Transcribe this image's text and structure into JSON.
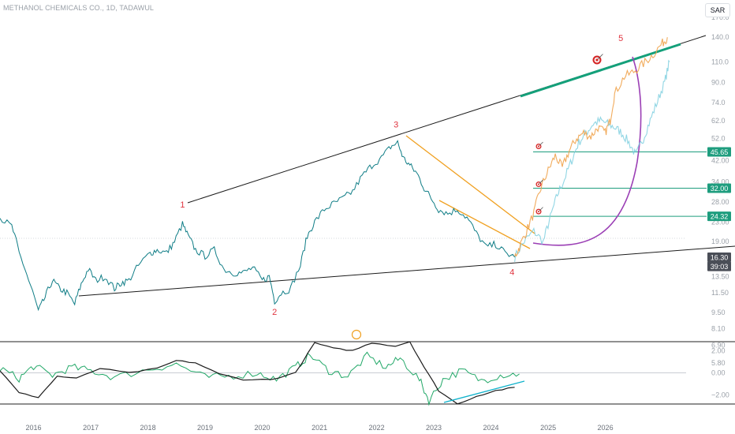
{
  "header": {
    "title": "METHANOL CHEMICALS CO., 1D, TADAWUL",
    "currency": "SAR"
  },
  "chart_data": [
    {
      "type": "line",
      "title": "METHANOL CHEMICALS CO., 1D, TADAWUL",
      "y_scale": "log",
      "ylim": [
        5.8,
        170
      ],
      "y_ticks": [
        "170.0",
        "140.0",
        "110.0",
        "90.0",
        "74.0",
        "62.0",
        "52.0",
        "42.00",
        "34.00",
        "28.00",
        "23.00",
        "19.00",
        "13.50",
        "11.50",
        "9.50",
        "8.10",
        "6.90",
        "5.80"
      ],
      "x_range": [
        "2015-06-01",
        "2027-06-01"
      ],
      "x_ticks": [
        "2016",
        "2017",
        "2018",
        "2019",
        "2020",
        "2021",
        "2022",
        "2023",
        "2024",
        "2025",
        "2026"
      ],
      "series": [
        {
          "values": [
            [
              "2015-06-01",
              24
            ],
            [
              "2015-08-15",
              22
            ],
            [
              "2015-10-01",
              17
            ],
            [
              "2015-12-01",
              13
            ],
            [
              "2016-02-01",
              9.6
            ],
            [
              "2016-03-15",
              11
            ],
            [
              "2016-05-01",
              13
            ],
            [
              "2016-06-15",
              12
            ],
            [
              "2016-08-01",
              11.5
            ],
            [
              "2016-09-20",
              10.3
            ],
            [
              "2016-11-01",
              12.5
            ],
            [
              "2016-12-15",
              14.5
            ],
            [
              "2017-02-01",
              13
            ],
            [
              "2017-04-01",
              13.5
            ],
            [
              "2017-06-01",
              12
            ],
            [
              "2017-07-15",
              12.7
            ],
            [
              "2017-09-01",
              13
            ],
            [
              "2017-11-01",
              15
            ],
            [
              "2018-01-15",
              17
            ],
            [
              "2018-03-01",
              17.5
            ],
            [
              "2018-05-01",
              17
            ],
            [
              "2018-06-20",
              19
            ],
            [
              "2018-08-10",
              22.5
            ],
            [
              "2018-09-15",
              20
            ],
            [
              "2018-11-01",
              17.5
            ],
            [
              "2019-01-01",
              16.5
            ],
            [
              "2019-03-01",
              17.5
            ],
            [
              "2019-05-01",
              14.5
            ],
            [
              "2019-07-01",
              14
            ],
            [
              "2019-09-01",
              14
            ],
            [
              "2019-11-01",
              14.7
            ],
            [
              "2020-01-01",
              13
            ],
            [
              "2020-02-15",
              13.5
            ],
            [
              "2020-03-20",
              10.6
            ],
            [
              "2020-05-01",
              11.5
            ],
            [
              "2020-07-01",
              12
            ],
            [
              "2020-09-01",
              15
            ],
            [
              "2020-10-15",
              20
            ],
            [
              "2020-12-01",
              23
            ],
            [
              "2021-02-01",
              26
            ],
            [
              "2021-04-01",
              27.5
            ],
            [
              "2021-06-01",
              29
            ],
            [
              "2021-08-01",
              31
            ],
            [
              "2021-10-01",
              36
            ],
            [
              "2021-12-01",
              40
            ],
            [
              "2022-02-01",
              43
            ],
            [
              "2022-04-01",
              48
            ],
            [
              "2022-05-15",
              50
            ],
            [
              "2022-06-20",
              43
            ],
            [
              "2022-08-01",
              40
            ],
            [
              "2022-09-15",
              37
            ],
            [
              "2022-11-01",
              32
            ],
            [
              "2022-12-15",
              29
            ],
            [
              "2023-02-01",
              26
            ],
            [
              "2023-04-01",
              25
            ],
            [
              "2023-06-01",
              26
            ],
            [
              "2023-08-01",
              24
            ],
            [
              "2023-10-01",
              20.5
            ],
            [
              "2023-12-01",
              18
            ],
            [
              "2024-02-01",
              18.5
            ],
            [
              "2024-04-01",
              17
            ],
            [
              "2024-06-01",
              16.3
            ]
          ]
        },
        {
          "values": [
            [
              "2024-06-01",
              16.3
            ],
            [
              "2024-07-01",
              18
            ],
            [
              "2024-08-15",
              21
            ],
            [
              "2024-10-01",
              25
            ],
            [
              "2024-11-15",
              32
            ],
            [
              "2025-01-01",
              38
            ],
            [
              "2025-02-15",
              44
            ],
            [
              "2025-04-01",
              39
            ],
            [
              "2025-05-15",
              46
            ],
            [
              "2025-07-01",
              52
            ],
            [
              "2025-08-15",
              55
            ],
            [
              "2025-10-01",
              53
            ],
            [
              "2025-11-15",
              58
            ],
            [
              "2026-01-01",
              55
            ],
            [
              "2026-02-01",
              62
            ],
            [
              "2026-03-01",
              80
            ],
            [
              "2026-05-01",
              95
            ],
            [
              "2026-07-01",
              100
            ],
            [
              "2026-09-01",
              108
            ],
            [
              "2026-11-01",
              118
            ],
            [
              "2027-01-01",
              132
            ],
            [
              "2027-02-01",
              140
            ]
          ]
        },
        {
          "values": [
            [
              "2024-06-01",
              16.3
            ],
            [
              "2024-08-01",
              19
            ],
            [
              "2024-10-01",
              21
            ],
            [
              "2024-12-01",
              19
            ],
            [
              "2025-01-15",
              24
            ],
            [
              "2025-03-01",
              30
            ],
            [
              "2025-04-15",
              35
            ],
            [
              "2025-06-01",
              42
            ],
            [
              "2025-07-15",
              50
            ],
            [
              "2025-09-01",
              55
            ],
            [
              "2025-10-15",
              60
            ],
            [
              "2025-12-01",
              62
            ],
            [
              "2026-01-15",
              60
            ],
            [
              "2026-03-01",
              58
            ],
            [
              "2026-04-15",
              55
            ],
            [
              "2026-06-01",
              50
            ],
            [
              "2026-07-15",
              44
            ],
            [
              "2026-09-01",
              52
            ],
            [
              "2026-10-15",
              62
            ],
            [
              "2026-12-01",
              75
            ],
            [
              "2027-01-15",
              90
            ],
            [
              "2027-02-15",
              110
            ]
          ]
        }
      ],
      "price_labels": [
        {
          "value": 45.65,
          "text": "45.65",
          "color": "#1e9d7e"
        },
        {
          "value": 32.0,
          "text": "32.00",
          "color": "#1e9d7e"
        },
        {
          "value": 24.32,
          "text": "24.32",
          "color": "#1e9d7e"
        },
        {
          "value": 16.3,
          "text": "16.30",
          "color": "#4a4e57"
        },
        {
          "value": 14.9,
          "text": "39:03",
          "color": "#4a4e57"
        }
      ],
      "wave_labels": [
        {
          "text": "1",
          "x": "2018-08-10",
          "y": 26.5,
          "color": "#e0343f"
        },
        {
          "text": "2",
          "x": "2020-03-20",
          "y": 9.3,
          "color": "#e0343f"
        },
        {
          "text": "3",
          "x": "2022-05-05",
          "y": 58,
          "color": "#e0343f"
        },
        {
          "text": "4",
          "x": "2024-05-15",
          "y": 13.7,
          "color": "#e0343f"
        },
        {
          "text": "5",
          "x": "2026-04-10",
          "y": 135,
          "color": "#e0343f"
        }
      ],
      "colors": {
        "price": "#0f7d86",
        "projection_orange": "#f0a24a",
        "projection_blue": "#7ecfdf",
        "trendline": "#000000",
        "upper_trend": "#14a07a",
        "target_lines": "#1e9d7e",
        "wedge": "#f0a020",
        "arc": "#9b3fb5"
      },
      "icons": [
        "target-icon"
      ]
    },
    {
      "type": "line",
      "ylim": [
        -2.8,
        2.8
      ],
      "y_ticks": [
        "2.00",
        "0.00",
        "−2.00"
      ],
      "series": [
        {
          "values": [
            [
              "2015-06-01",
              0.4
            ],
            [
              "2015-10-01",
              -0.5
            ],
            [
              "2016-01-01",
              0.6
            ],
            [
              "2016-05-01",
              -0.2
            ],
            [
              "2016-09-01",
              0.5
            ],
            [
              "2017-01-01",
              0.2
            ],
            [
              "2017-06-01",
              -0.4
            ],
            [
              "2018-01-01",
              0.3
            ],
            [
              "2018-07-01",
              0.8
            ],
            [
              "2019-01-01",
              -0.4
            ],
            [
              "2019-06-01",
              -0.3
            ],
            [
              "2019-12-01",
              0.0
            ],
            [
              "2020-04-01",
              -0.6
            ],
            [
              "2020-08-01",
              0.5
            ],
            [
              "2020-11-01",
              1.6
            ],
            [
              "2021-03-01",
              0.2
            ],
            [
              "2021-07-01",
              -0.3
            ],
            [
              "2021-11-01",
              1.5
            ],
            [
              "2022-03-01",
              0.5
            ],
            [
              "2022-06-01",
              1.3
            ],
            [
              "2022-10-01",
              -0.6
            ],
            [
              "2022-12-01",
              -2.5
            ],
            [
              "2023-03-01",
              -0.6
            ],
            [
              "2023-07-01",
              0.2
            ],
            [
              "2023-11-01",
              -0.7
            ],
            [
              "2024-03-01",
              -0.2
            ],
            [
              "2024-07-01",
              -0.1
            ]
          ]
        },
        {
          "values": [
            [
              "2015-06-01",
              0.2
            ],
            [
              "2015-10-01",
              -1.8
            ],
            [
              "2016-02-01",
              -2.2
            ],
            [
              "2016-06-01",
              -0.3
            ],
            [
              "2016-10-01",
              -0.5
            ],
            [
              "2017-03-01",
              0.4
            ],
            [
              "2017-09-01",
              0.0
            ],
            [
              "2018-03-01",
              0.4
            ],
            [
              "2018-07-01",
              1.1
            ],
            [
              "2018-11-01",
              0.9
            ],
            [
              "2019-04-01",
              -0.1
            ],
            [
              "2019-09-01",
              -0.6
            ],
            [
              "2020-03-01",
              -0.6
            ],
            [
              "2020-08-01",
              0.0
            ],
            [
              "2020-12-01",
              2.7
            ],
            [
              "2021-04-01",
              2.2
            ],
            [
              "2021-08-01",
              2.0
            ],
            [
              "2021-12-01",
              2.7
            ],
            [
              "2022-05-01",
              2.4
            ],
            [
              "2022-08-01",
              2.8
            ],
            [
              "2022-11-01",
              0.5
            ],
            [
              "2023-02-01",
              -1.6
            ],
            [
              "2023-06-01",
              -2.8
            ],
            [
              "2023-10-01",
              -2.1
            ],
            [
              "2024-02-01",
              -1.6
            ],
            [
              "2024-06-01",
              -1.3
            ]
          ]
        }
      ],
      "colors": {
        "fast": "#22a868",
        "slow": "#1b1b1b",
        "divergence": "#12b3cc"
      },
      "icons": [
        "dividend-icon"
      ]
    }
  ]
}
